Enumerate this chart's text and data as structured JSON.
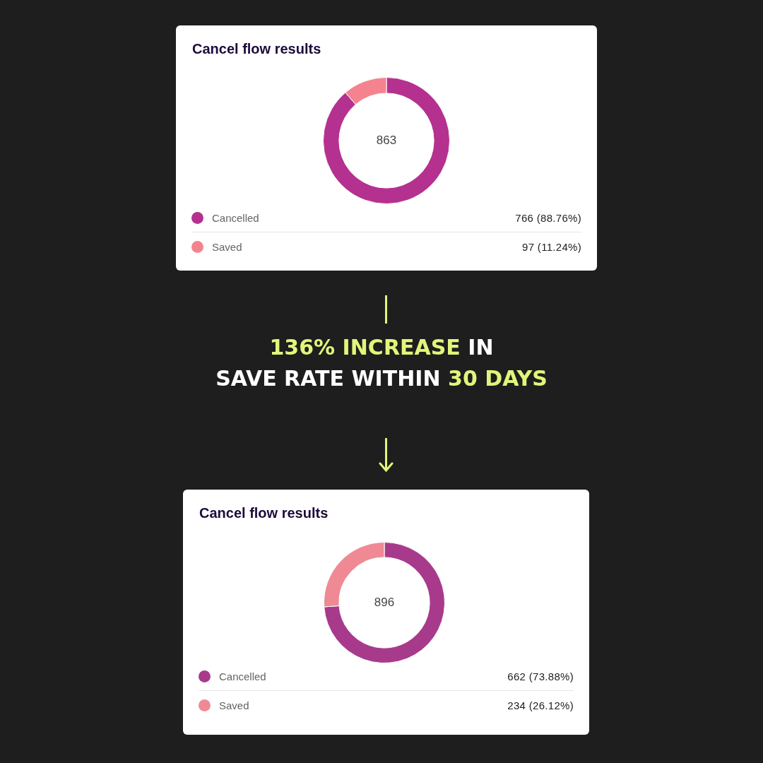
{
  "chart_data": [
    {
      "type": "donut",
      "title": "Cancel flow results",
      "categories": [
        "Cancelled",
        "Saved"
      ],
      "values": [
        766,
        97
      ],
      "colors": [
        "#b5318f",
        "#f4838f"
      ],
      "value_labels": [
        "766 (88.76%)",
        "97 (11.24%)"
      ],
      "annotations": [
        "863"
      ],
      "legend": "bottom"
    },
    {
      "type": "other",
      "annotations": [
        "136% INCREASE",
        "IN",
        "SAVE RATE WITHIN",
        "30 DAYS"
      ]
    },
    {
      "type": "donut",
      "title": "Cancel flow results",
      "categories": [
        "Cancelled",
        "Saved"
      ],
      "values": [
        662,
        234
      ],
      "colors": [
        "#a83a8c",
        "#ef8a95"
      ],
      "value_labels": [
        "662 (73.88%)",
        "234 (26.12%)"
      ],
      "annotations": [
        "896"
      ],
      "legend": "bottom"
    }
  ]
}
